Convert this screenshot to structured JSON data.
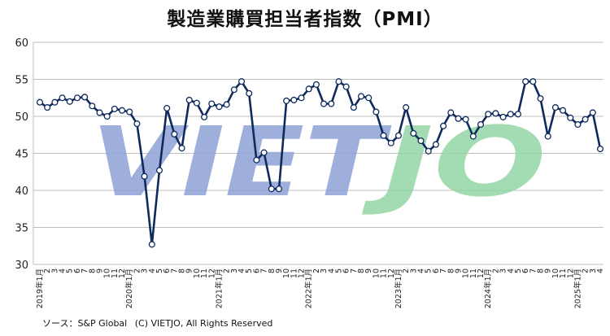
{
  "chart_data": {
    "type": "line",
    "title": "製造業購買担当者指数（PMI）",
    "watermark": "VIETJO",
    "ylim": [
      30,
      60
    ],
    "yticks": [
      30,
      35,
      40,
      45,
      50,
      55,
      60
    ],
    "grid": true,
    "line_color": "#0f2a5c",
    "marker_fill": "#ffffff",
    "watermark_colors": {
      "VIET": "#8ea2d6",
      "JO": "#93d6a6"
    },
    "x_labels": [
      "2019年1月",
      "2",
      "3",
      "4",
      "5",
      "6",
      "7",
      "8",
      "9",
      "10",
      "11",
      "12",
      "2020年1月",
      "2",
      "3",
      "4",
      "5",
      "6",
      "7",
      "8",
      "9",
      "10",
      "11",
      "12",
      "2021年1月",
      "2",
      "3",
      "4",
      "5",
      "6",
      "7",
      "8",
      "9",
      "10",
      "11",
      "12",
      "2022年1月",
      "2",
      "3",
      "4",
      "5",
      "6",
      "7",
      "8",
      "9",
      "10",
      "11",
      "12",
      "2023年1月",
      "2",
      "3",
      "4",
      "5",
      "6",
      "7",
      "8",
      "9",
      "10",
      "11",
      "12",
      "2024年1月",
      "2",
      "3",
      "4",
      "5",
      "6",
      "7",
      "8",
      "9",
      "10",
      "11",
      "12",
      "2025年1月",
      "2",
      "3",
      "4"
    ],
    "series": [
      {
        "values": [
          51.9,
          51.2,
          51.9,
          52.5,
          52.0,
          52.5,
          52.6,
          51.4,
          50.5,
          50.0,
          51.0,
          50.8,
          50.6,
          49.0,
          41.9,
          32.7,
          42.7,
          51.1,
          47.6,
          45.7,
          52.2,
          51.8,
          49.9,
          51.7,
          51.3,
          51.6,
          53.6,
          54.7,
          53.1,
          44.1,
          45.1,
          40.2,
          40.2,
          52.1,
          52.2,
          52.5,
          53.7,
          54.3,
          51.7,
          51.7,
          54.7,
          54.0,
          51.2,
          52.7,
          52.5,
          50.6,
          47.4,
          46.4,
          47.4,
          51.2,
          47.7,
          46.7,
          45.3,
          46.2,
          48.7,
          50.5,
          49.7,
          49.6,
          47.3,
          48.9,
          50.3,
          50.4,
          49.9,
          50.3,
          50.3,
          54.7,
          54.7,
          52.4,
          47.3,
          51.2,
          50.8,
          49.8,
          48.9,
          49.6,
          50.5,
          45.6
        ]
      }
    ]
  },
  "footer": {
    "source": "ソース：S&P Global",
    "copyright": "(C) VIETJO, All Rights Reserved"
  }
}
